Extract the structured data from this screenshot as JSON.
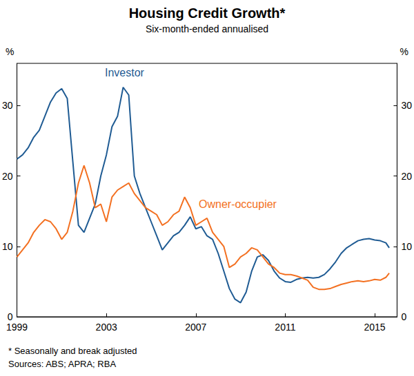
{
  "chart_data": {
    "type": "line",
    "title": "Housing Credit Growth*",
    "subtitle": "Six-month-ended annualised",
    "ylabel": "%",
    "y2label": "%",
    "footnote": "* Seasonally and break adjusted",
    "sources": "Sources: ABS; APRA; RBA",
    "x": [
      1999.0,
      1999.25,
      1999.5,
      1999.75,
      2000.0,
      2000.25,
      2000.5,
      2000.75,
      2001.0,
      2001.25,
      2001.5,
      2001.75,
      2002.0,
      2002.25,
      2002.5,
      2002.75,
      2003.0,
      2003.25,
      2003.5,
      2003.75,
      2004.0,
      2004.25,
      2004.5,
      2004.75,
      2005.0,
      2005.25,
      2005.5,
      2005.75,
      2006.0,
      2006.25,
      2006.5,
      2006.75,
      2007.0,
      2007.25,
      2007.5,
      2007.75,
      2008.0,
      2008.25,
      2008.5,
      2008.75,
      2009.0,
      2009.25,
      2009.5,
      2009.75,
      2010.0,
      2010.25,
      2010.5,
      2010.75,
      2011.0,
      2011.25,
      2011.5,
      2011.75,
      2012.0,
      2012.25,
      2012.5,
      2012.75,
      2013.0,
      2013.25,
      2013.5,
      2013.75,
      2014.0,
      2014.25,
      2014.5,
      2014.75,
      2015.0,
      2015.25,
      2015.5,
      2015.65
    ],
    "series": [
      {
        "name": "Investor",
        "color": "#1f5b93",
        "values": [
          22.4,
          23.0,
          24.0,
          25.5,
          26.5,
          28.5,
          30.5,
          31.8,
          32.4,
          31.0,
          22.0,
          13.0,
          12.0,
          14.0,
          16.0,
          20.0,
          23.0,
          27.0,
          28.5,
          32.6,
          31.5,
          20.0,
          17.5,
          15.5,
          13.5,
          11.5,
          9.5,
          10.5,
          11.5,
          12.0,
          13.0,
          14.2,
          12.5,
          12.8,
          11.5,
          11.0,
          9.0,
          6.5,
          4.0,
          2.5,
          2.0,
          3.5,
          6.5,
          8.5,
          8.8,
          8.0,
          6.5,
          5.5,
          5.0,
          4.9,
          5.3,
          5.5,
          5.6,
          5.5,
          5.6,
          6.0,
          6.8,
          7.8,
          9.0,
          9.8,
          10.3,
          10.8,
          11.0,
          11.1,
          10.9,
          10.8,
          10.5,
          9.8
        ]
      },
      {
        "name": "Owner-occupier",
        "color": "#f37021",
        "values": [
          8.5,
          9.5,
          10.5,
          12.0,
          13.0,
          13.8,
          13.5,
          12.5,
          11.0,
          12.0,
          15.0,
          19.0,
          21.5,
          19.0,
          15.5,
          16.0,
          13.5,
          17.0,
          18.0,
          18.5,
          19.0,
          17.5,
          16.5,
          15.5,
          15.0,
          14.5,
          13.0,
          13.5,
          14.5,
          15.0,
          17.0,
          15.5,
          13.0,
          13.5,
          14.0,
          12.0,
          11.0,
          10.0,
          7.0,
          7.5,
          8.5,
          9.0,
          9.8,
          9.5,
          8.5,
          7.5,
          7.0,
          6.2,
          6.0,
          6.0,
          5.8,
          5.5,
          5.2,
          4.2,
          3.9,
          3.9,
          4.0,
          4.3,
          4.6,
          4.8,
          5.0,
          5.1,
          5.0,
          5.1,
          5.3,
          5.2,
          5.6,
          6.2
        ]
      }
    ],
    "xlim": [
      1999,
      2016
    ],
    "xticks": [
      1999,
      2003,
      2007,
      2011,
      2015
    ],
    "ylim": [
      0,
      36
    ],
    "yticks": [
      0,
      10,
      20,
      30
    ],
    "y2lim": [
      0,
      36
    ],
    "y2ticks": [
      0,
      10,
      20,
      30
    ],
    "grid": false
  }
}
